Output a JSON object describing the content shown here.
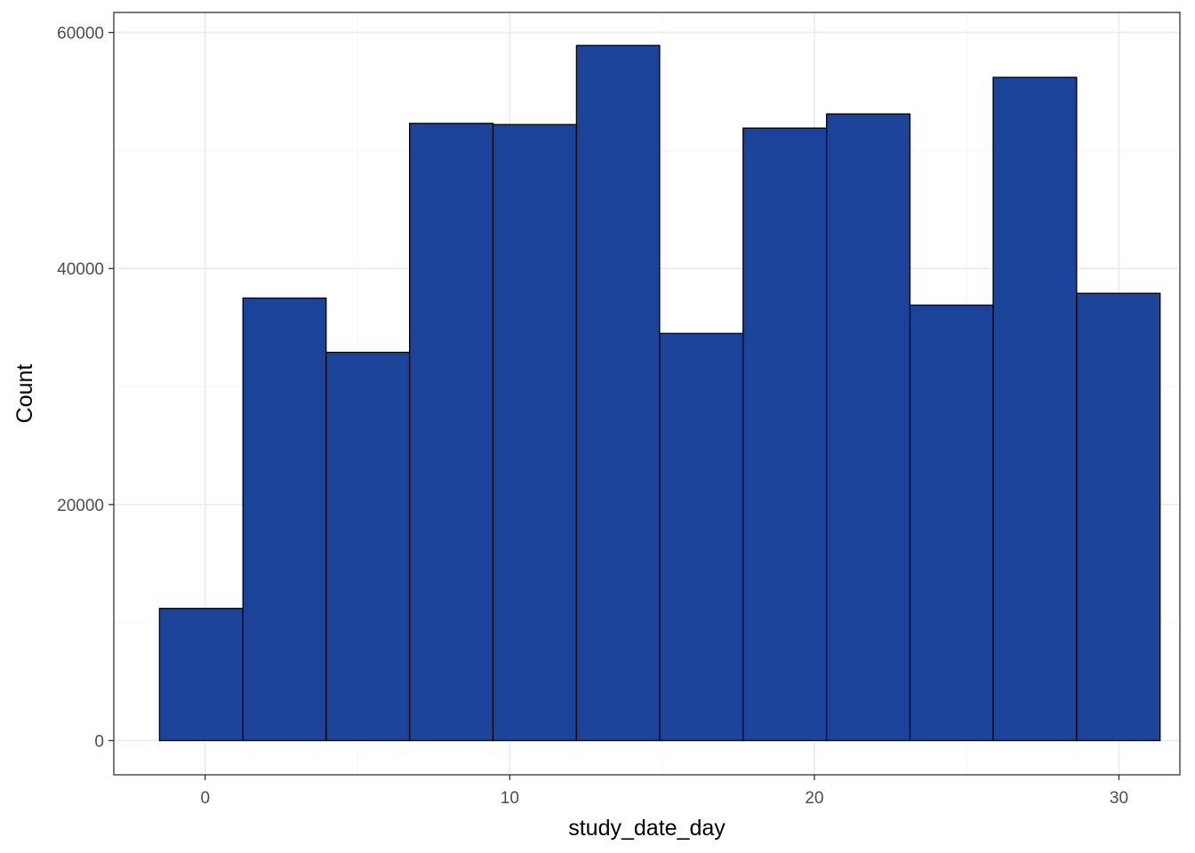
{
  "chart_data": {
    "type": "bar",
    "subtype": "histogram",
    "xlabel": "study_date_day",
    "ylabel": "Count",
    "xlim": [
      -3,
      32
    ],
    "ylim": [
      -2900,
      61700
    ],
    "x_ticks": [
      0,
      10,
      20,
      30
    ],
    "x_tick_labels": [
      "0",
      "10",
      "20",
      "30"
    ],
    "y_ticks": [
      0,
      20000,
      40000,
      60000
    ],
    "y_tick_labels": [
      "0",
      "20000",
      "40000",
      "60000"
    ],
    "bins": [
      {
        "x0": -1.5,
        "x1": 1.24,
        "count": 11200
      },
      {
        "x0": 1.24,
        "x1": 3.97,
        "count": 37500
      },
      {
        "x0": 3.97,
        "x1": 6.71,
        "count": 32900
      },
      {
        "x0": 6.71,
        "x1": 9.45,
        "count": 52300
      },
      {
        "x0": 9.45,
        "x1": 12.19,
        "count": 52200
      },
      {
        "x0": 12.19,
        "x1": 14.92,
        "count": 58900
      },
      {
        "x0": 14.92,
        "x1": 17.66,
        "count": 34500
      },
      {
        "x0": 17.66,
        "x1": 20.4,
        "count": 51900
      },
      {
        "x0": 20.4,
        "x1": 23.14,
        "count": 53100
      },
      {
        "x0": 23.14,
        "x1": 25.87,
        "count": 36900
      },
      {
        "x0": 25.87,
        "x1": 28.61,
        "count": 56200
      },
      {
        "x0": 28.61,
        "x1": 31.35,
        "count": 37900
      }
    ],
    "grid": true,
    "legend": "none"
  },
  "colors": {
    "bar_fill": "#1a4399",
    "bar_stroke": "#000000",
    "grid_major": "#ebebeb",
    "grid_minor": "#f5f5f5",
    "panel_border": "#333333",
    "tick_text": "#4d4d4d",
    "axis_title": "#000000"
  }
}
